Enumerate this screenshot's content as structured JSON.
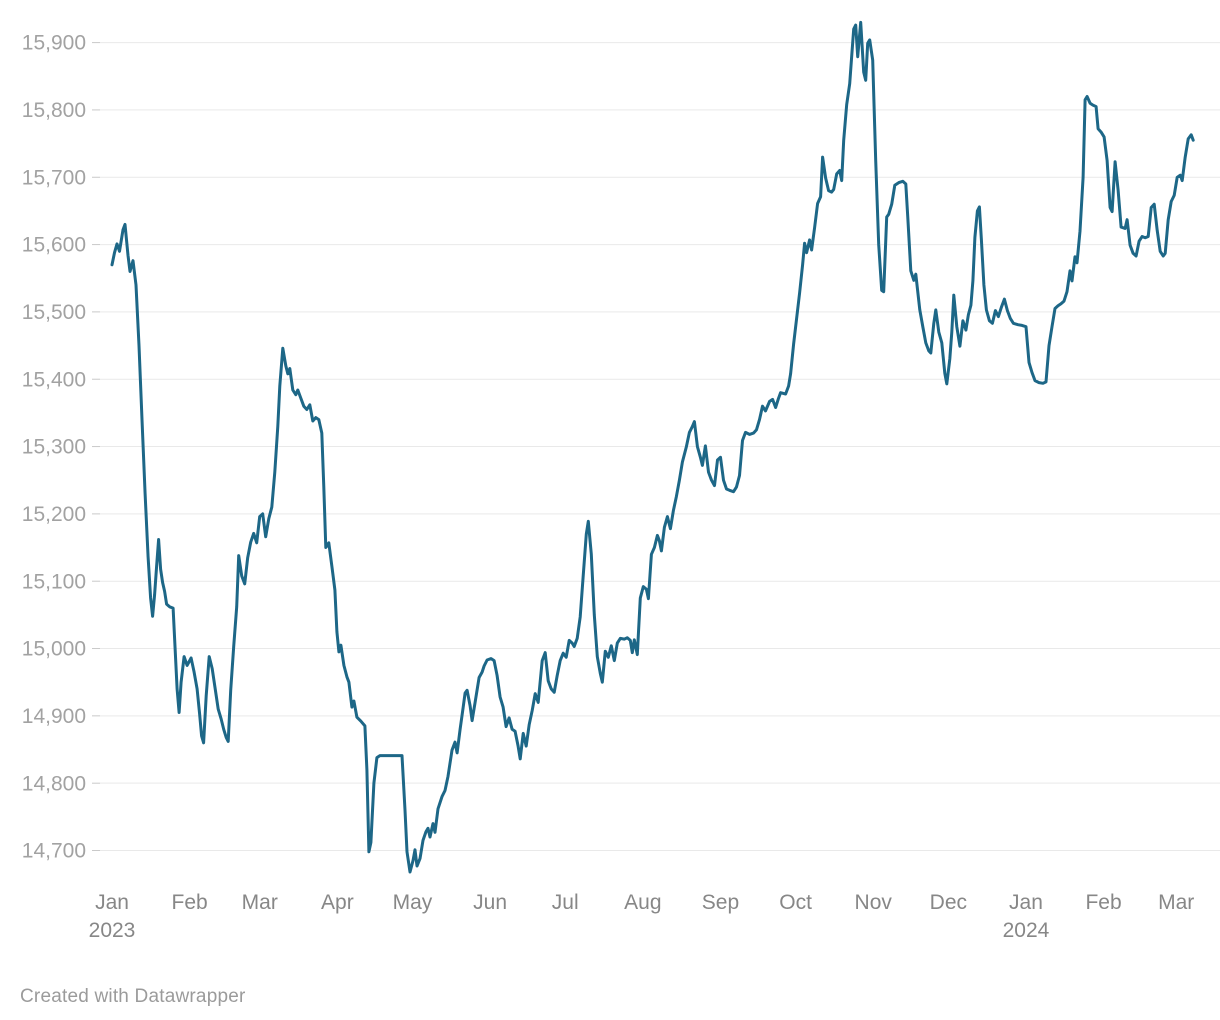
{
  "footer": {
    "credit": "Created with Datawrapper"
  },
  "colors": {
    "background": "#ffffff",
    "line": "#1d6787",
    "grid": "#e9e9e9",
    "tick": "#c9c9c9",
    "y_label": "#a2a2a2",
    "x_label": "#878787",
    "footer": "#9b9b9b"
  },
  "chart_data": {
    "type": "line",
    "title": "",
    "xlabel": "",
    "ylabel": "",
    "legend_position": "none",
    "grid": true,
    "ylim": [
      14650,
      15940
    ],
    "yticks": [
      14700,
      14800,
      14900,
      15000,
      15100,
      15200,
      15300,
      15400,
      15500,
      15600,
      15700,
      15800,
      15900
    ],
    "xticks": [
      {
        "date": "2023-01-01",
        "label": "Jan",
        "sub": "2023"
      },
      {
        "date": "2023-02-01",
        "label": "Feb"
      },
      {
        "date": "2023-03-01",
        "label": "Mar"
      },
      {
        "date": "2023-04-01",
        "label": "Apr"
      },
      {
        "date": "2023-05-01",
        "label": "May"
      },
      {
        "date": "2023-06-01",
        "label": "Jun"
      },
      {
        "date": "2023-07-01",
        "label": "Jul"
      },
      {
        "date": "2023-08-01",
        "label": "Aug"
      },
      {
        "date": "2023-09-01",
        "label": "Sep"
      },
      {
        "date": "2023-10-01",
        "label": "Oct"
      },
      {
        "date": "2023-11-01",
        "label": "Nov"
      },
      {
        "date": "2023-12-01",
        "label": "Dec"
      },
      {
        "date": "2024-01-01",
        "label": "Jan",
        "sub": "2024"
      },
      {
        "date": "2024-02-01",
        "label": "Feb"
      },
      {
        "date": "2024-03-01",
        "label": "Mar"
      }
    ],
    "x_start_date": "2023-01-01",
    "x_end_day": 435,
    "points_format": [
      "days_since_start_date",
      "value"
    ],
    "points": [
      [
        0,
        15570
      ],
      [
        1,
        15588
      ],
      [
        2,
        15601
      ],
      [
        3,
        15590
      ],
      [
        4.4,
        15622
      ],
      [
        5.2,
        15630
      ],
      [
        6.4,
        15584
      ],
      [
        7.2,
        15560
      ],
      [
        8.4,
        15576
      ],
      [
        9.6,
        15540
      ],
      [
        10.8,
        15450
      ],
      [
        12,
        15340
      ],
      [
        13.2,
        15230
      ],
      [
        14.4,
        15136
      ],
      [
        15.4,
        15075
      ],
      [
        16.2,
        15048
      ],
      [
        17,
        15080
      ],
      [
        17.8,
        15122
      ],
      [
        18.6,
        15162
      ],
      [
        19.4,
        15118
      ],
      [
        20.2,
        15098
      ],
      [
        21,
        15085
      ],
      [
        21.8,
        15066
      ],
      [
        23,
        15062
      ],
      [
        24.4,
        15060
      ],
      [
        25.2,
        15000
      ],
      [
        26,
        14940
      ],
      [
        26.8,
        14905
      ],
      [
        27.6,
        14950
      ],
      [
        28.8,
        14988
      ],
      [
        30,
        14975
      ],
      [
        31.6,
        14986
      ],
      [
        32.8,
        14965
      ],
      [
        34,
        14940
      ],
      [
        35,
        14903
      ],
      [
        35.8,
        14870
      ],
      [
        36.6,
        14860
      ],
      [
        37.6,
        14930
      ],
      [
        38.8,
        14988
      ],
      [
        40,
        14970
      ],
      [
        41.2,
        14940
      ],
      [
        42.4,
        14910
      ],
      [
        43.6,
        14895
      ],
      [
        44.6,
        14880
      ],
      [
        45.6,
        14868
      ],
      [
        46.4,
        14862
      ],
      [
        47.4,
        14938
      ],
      [
        48.6,
        15003
      ],
      [
        49.8,
        15062
      ],
      [
        50.6,
        15138
      ],
      [
        51.8,
        15108
      ],
      [
        53,
        15096
      ],
      [
        54.2,
        15135
      ],
      [
        55.4,
        15158
      ],
      [
        56.6,
        15171
      ],
      [
        57.8,
        15157
      ],
      [
        59,
        15196
      ],
      [
        60.2,
        15200
      ],
      [
        61.4,
        15166
      ],
      [
        62.6,
        15193
      ],
      [
        63.8,
        15210
      ],
      [
        65,
        15262
      ],
      [
        66.2,
        15330
      ],
      [
        67,
        15390
      ],
      [
        68.2,
        15446
      ],
      [
        69.4,
        15420
      ],
      [
        70.2,
        15408
      ],
      [
        71,
        15416
      ],
      [
        72.2,
        15384
      ],
      [
        73.4,
        15377
      ],
      [
        74.2,
        15384
      ],
      [
        75.4,
        15372
      ],
      [
        76.6,
        15360
      ],
      [
        77.8,
        15355
      ],
      [
        79,
        15362
      ],
      [
        80.2,
        15338
      ],
      [
        81.4,
        15343
      ],
      [
        82.6,
        15340
      ],
      [
        83.8,
        15320
      ],
      [
        84.6,
        15240
      ],
      [
        85.4,
        15150
      ],
      [
        86.6,
        15157
      ],
      [
        87.8,
        15122
      ],
      [
        89,
        15087
      ],
      [
        89.8,
        15025
      ],
      [
        90.6,
        14995
      ],
      [
        91.4,
        15005
      ],
      [
        92.6,
        14975
      ],
      [
        93.8,
        14958
      ],
      [
        94.6,
        14950
      ],
      [
        95.8,
        14913
      ],
      [
        96.6,
        14922
      ],
      [
        97.8,
        14898
      ],
      [
        99.4,
        14892
      ],
      [
        101,
        14885
      ],
      [
        101.8,
        14820
      ],
      [
        102.6,
        14698
      ],
      [
        103.4,
        14712
      ],
      [
        104.6,
        14800
      ],
      [
        105.8,
        14838
      ],
      [
        107,
        14841
      ],
      [
        115.8,
        14841
      ],
      [
        117,
        14760
      ],
      [
        117.8,
        14698
      ],
      [
        119,
        14668
      ],
      [
        120.2,
        14685
      ],
      [
        121,
        14701
      ],
      [
        121.8,
        14677
      ],
      [
        123,
        14688
      ],
      [
        124.2,
        14715
      ],
      [
        125.4,
        14728
      ],
      [
        126.2,
        14733
      ],
      [
        127,
        14720
      ],
      [
        128.2,
        14740
      ],
      [
        129,
        14727
      ],
      [
        130.2,
        14762
      ],
      [
        131.8,
        14780
      ],
      [
        133,
        14789
      ],
      [
        134.2,
        14810
      ],
      [
        135.8,
        14849
      ],
      [
        137,
        14861
      ],
      [
        137.8,
        14845
      ],
      [
        139,
        14880
      ],
      [
        140.2,
        14912
      ],
      [
        141,
        14934
      ],
      [
        141.8,
        14938
      ],
      [
        143,
        14915
      ],
      [
        143.8,
        14893
      ],
      [
        145,
        14920
      ],
      [
        146.6,
        14957
      ],
      [
        147.8,
        14965
      ],
      [
        148.6,
        14974
      ],
      [
        149.8,
        14983
      ],
      [
        151.4,
        14985
      ],
      [
        152.6,
        14982
      ],
      [
        153.8,
        14960
      ],
      [
        155,
        14928
      ],
      [
        156.2,
        14913
      ],
      [
        157.4,
        14884
      ],
      [
        158.6,
        14897
      ],
      [
        159.8,
        14880
      ],
      [
        161,
        14877
      ],
      [
        162.2,
        14855
      ],
      [
        163,
        14836
      ],
      [
        164.2,
        14874
      ],
      [
        165.4,
        14855
      ],
      [
        166.6,
        14887
      ],
      [
        167.8,
        14908
      ],
      [
        169,
        14933
      ],
      [
        170.2,
        14920
      ],
      [
        171.8,
        14982
      ],
      [
        173,
        14994
      ],
      [
        174.2,
        14952
      ],
      [
        175.4,
        14940
      ],
      [
        176.6,
        14935
      ],
      [
        177.8,
        14960
      ],
      [
        179,
        14982
      ],
      [
        180.2,
        14993
      ],
      [
        181.4,
        14987
      ],
      [
        182.6,
        15012
      ],
      [
        183.8,
        15008
      ],
      [
        184.6,
        15003
      ],
      [
        185.8,
        15015
      ],
      [
        187,
        15047
      ],
      [
        188.2,
        15110
      ],
      [
        189.4,
        15170
      ],
      [
        190.2,
        15189
      ],
      [
        191.4,
        15140
      ],
      [
        192.6,
        15050
      ],
      [
        193.8,
        14988
      ],
      [
        195,
        14963
      ],
      [
        195.8,
        14950
      ],
      [
        197,
        14996
      ],
      [
        198.2,
        14987
      ],
      [
        199.4,
        15004
      ],
      [
        200.6,
        14982
      ],
      [
        201.8,
        15008
      ],
      [
        203,
        15015
      ],
      [
        204.6,
        15014
      ],
      [
        205.8,
        15016
      ],
      [
        207,
        15012
      ],
      [
        207.8,
        14994
      ],
      [
        208.6,
        15013
      ],
      [
        209.8,
        14991
      ],
      [
        211,
        15075
      ],
      [
        212.2,
        15092
      ],
      [
        213.4,
        15088
      ],
      [
        214.2,
        15074
      ],
      [
        215.4,
        15140
      ],
      [
        216.6,
        15150
      ],
      [
        217.8,
        15168
      ],
      [
        218.6,
        15160
      ],
      [
        219.4,
        15145
      ],
      [
        220.6,
        15180
      ],
      [
        221.8,
        15196
      ],
      [
        223,
        15178
      ],
      [
        224.2,
        15205
      ],
      [
        225.4,
        15226
      ],
      [
        226.6,
        15250
      ],
      [
        227.8,
        15277
      ],
      [
        229.4,
        15300
      ],
      [
        230.6,
        15321
      ],
      [
        231.8,
        15330
      ],
      [
        232.6,
        15337
      ],
      [
        233.8,
        15300
      ],
      [
        235,
        15284
      ],
      [
        235.8,
        15272
      ],
      [
        237,
        15301
      ],
      [
        238.2,
        15262
      ],
      [
        239.4,
        15250
      ],
      [
        240.6,
        15242
      ],
      [
        241.8,
        15280
      ],
      [
        243,
        15284
      ],
      [
        244.2,
        15250
      ],
      [
        245.4,
        15237
      ],
      [
        246.6,
        15235
      ],
      [
        248.2,
        15233
      ],
      [
        249.4,
        15240
      ],
      [
        250.6,
        15257
      ],
      [
        251.8,
        15309
      ],
      [
        253,
        15321
      ],
      [
        254.6,
        15318
      ],
      [
        256.2,
        15320
      ],
      [
        257.4,
        15325
      ],
      [
        258.6,
        15340
      ],
      [
        259.8,
        15360
      ],
      [
        261,
        15353
      ],
      [
        262.6,
        15367
      ],
      [
        263.8,
        15370
      ],
      [
        265,
        15358
      ],
      [
        266.2,
        15372
      ],
      [
        267,
        15380
      ],
      [
        269,
        15378
      ],
      [
        270.2,
        15390
      ],
      [
        271,
        15408
      ],
      [
        272.2,
        15452
      ],
      [
        273.4,
        15490
      ],
      [
        274.6,
        15528
      ],
      [
        275.8,
        15570
      ],
      [
        276.6,
        15602
      ],
      [
        277.4,
        15588
      ],
      [
        278.6,
        15607
      ],
      [
        279.4,
        15592
      ],
      [
        280.6,
        15625
      ],
      [
        281.8,
        15661
      ],
      [
        283,
        15671
      ],
      [
        283.8,
        15730
      ],
      [
        285,
        15699
      ],
      [
        286.2,
        15680
      ],
      [
        287.4,
        15678
      ],
      [
        288.2,
        15682
      ],
      [
        289.4,
        15705
      ],
      [
        290.6,
        15710
      ],
      [
        291.4,
        15695
      ],
      [
        292.2,
        15755
      ],
      [
        293.4,
        15808
      ],
      [
        294.6,
        15839
      ],
      [
        295.4,
        15880
      ],
      [
        296.2,
        15920
      ],
      [
        297,
        15926
      ],
      [
        297.8,
        15879
      ],
      [
        299,
        15930
      ],
      [
        300.2,
        15856
      ],
      [
        301,
        15844
      ],
      [
        301.8,
        15899
      ],
      [
        302.6,
        15904
      ],
      [
        303.8,
        15874
      ],
      [
        305,
        15725
      ],
      [
        306.2,
        15600
      ],
      [
        307.4,
        15532
      ],
      [
        308.2,
        15530
      ],
      [
        309.4,
        15641
      ],
      [
        310.2,
        15645
      ],
      [
        311.4,
        15660
      ],
      [
        312.6,
        15688
      ],
      [
        314.2,
        15692
      ],
      [
        315.8,
        15694
      ],
      [
        317,
        15690
      ],
      [
        317.8,
        15640
      ],
      [
        319,
        15561
      ],
      [
        320.2,
        15547
      ],
      [
        321,
        15556
      ],
      [
        322.6,
        15503
      ],
      [
        323.8,
        15478
      ],
      [
        325,
        15454
      ],
      [
        326.2,
        15442
      ],
      [
        327,
        15439
      ],
      [
        328.2,
        15483
      ],
      [
        329,
        15503
      ],
      [
        330.2,
        15470
      ],
      [
        331.4,
        15454
      ],
      [
        332.6,
        15409
      ],
      [
        333.4,
        15393
      ],
      [
        334.6,
        15430
      ],
      [
        335.4,
        15470
      ],
      [
        336.2,
        15525
      ],
      [
        337.4,
        15478
      ],
      [
        338.6,
        15449
      ],
      [
        339.8,
        15487
      ],
      [
        341,
        15473
      ],
      [
        342,
        15496
      ],
      [
        343,
        15510
      ],
      [
        343.8,
        15546
      ],
      [
        344.6,
        15611
      ],
      [
        345.6,
        15650
      ],
      [
        346.4,
        15656
      ],
      [
        347.2,
        15607
      ],
      [
        348.2,
        15540
      ],
      [
        349.2,
        15503
      ],
      [
        350.4,
        15487
      ],
      [
        351.6,
        15483
      ],
      [
        352.8,
        15502
      ],
      [
        354,
        15493
      ],
      [
        355.2,
        15507
      ],
      [
        356.4,
        15519
      ],
      [
        357.6,
        15502
      ],
      [
        358.8,
        15490
      ],
      [
        360,
        15483
      ],
      [
        361.8,
        15481
      ],
      [
        363.4,
        15480
      ],
      [
        365,
        15478
      ],
      [
        366.2,
        15425
      ],
      [
        367.4,
        15410
      ],
      [
        368.6,
        15398
      ],
      [
        370.2,
        15395
      ],
      [
        371.8,
        15394
      ],
      [
        373,
        15396
      ],
      [
        374.2,
        15450
      ],
      [
        375.4,
        15478
      ],
      [
        376.6,
        15505
      ],
      [
        377.8,
        15509
      ],
      [
        379,
        15512
      ],
      [
        380.2,
        15516
      ],
      [
        381.4,
        15530
      ],
      [
        382.6,
        15561
      ],
      [
        383.4,
        15546
      ],
      [
        384.6,
        15582
      ],
      [
        385.4,
        15573
      ],
      [
        386.6,
        15620
      ],
      [
        387.8,
        15700
      ],
      [
        388.6,
        15815
      ],
      [
        389.4,
        15820
      ],
      [
        390.6,
        15810
      ],
      [
        391.8,
        15807
      ],
      [
        393,
        15805
      ],
      [
        393.8,
        15772
      ],
      [
        395,
        15767
      ],
      [
        396.2,
        15760
      ],
      [
        397.4,
        15725
      ],
      [
        398.6,
        15655
      ],
      [
        399.4,
        15649
      ],
      [
        400.6,
        15723
      ],
      [
        401.8,
        15681
      ],
      [
        403,
        15626
      ],
      [
        404.6,
        15624
      ],
      [
        405.4,
        15637
      ],
      [
        406.6,
        15599
      ],
      [
        407.8,
        15587
      ],
      [
        409,
        15583
      ],
      [
        410.2,
        15605
      ],
      [
        411.4,
        15612
      ],
      [
        412.6,
        15610
      ],
      [
        413.8,
        15612
      ],
      [
        415,
        15655
      ],
      [
        416.2,
        15660
      ],
      [
        417.4,
        15621
      ],
      [
        418.6,
        15590
      ],
      [
        419.8,
        15583
      ],
      [
        420.6,
        15587
      ],
      [
        421.8,
        15637
      ],
      [
        423,
        15664
      ],
      [
        424.2,
        15673
      ],
      [
        425.4,
        15700
      ],
      [
        426.6,
        15703
      ],
      [
        427.4,
        15695
      ],
      [
        428.6,
        15730
      ],
      [
        429.8,
        15757
      ],
      [
        431,
        15763
      ],
      [
        431.8,
        15755
      ]
    ]
  }
}
